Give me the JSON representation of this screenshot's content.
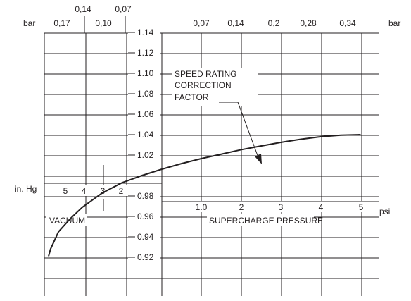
{
  "chart_data": {
    "type": "line",
    "title": "",
    "units": {
      "top_left": "bar",
      "top_right": "bar",
      "left": "in. Hg",
      "right": "psi"
    },
    "bar_vacuum_ticks": [
      "0,17",
      "0,14",
      "0,10",
      "0,07"
    ],
    "bar_pressure_ticks": [
      "0,07",
      "0,14",
      "0,2",
      "0,28",
      "0,34"
    ],
    "vacuum_ticks": [
      "5",
      "4",
      "3",
      "2"
    ],
    "pressure_ticks": [
      "1.0",
      "2",
      "3",
      "4",
      "5"
    ],
    "factor_ticks": [
      "1.14",
      "1.12",
      "1.10",
      "1.08",
      "1.06",
      "1.04",
      "1.02",
      "0.98",
      "0.96",
      "0.94",
      "0.92"
    ],
    "labels": {
      "vacuum": "VACUUM",
      "supercharge": "SUPERCHARGE PRESSURE",
      "annotation_line1": "SPEED RATING",
      "annotation_line2": "CORRECTION",
      "annotation_line3": "FACTOR"
    },
    "series": [
      {
        "x_unit": "psi",
        "x": [
          -2.85,
          -2.8,
          -2.6,
          -2.3,
          -2.0,
          -1.5,
          -1.0,
          -0.5,
          0,
          0.5,
          1.0,
          1.5,
          2.0,
          2.5,
          3.0,
          3.5,
          4.0,
          4.5,
          5.0
        ],
        "y": [
          0.921,
          0.928,
          0.945,
          0.958,
          0.969,
          0.983,
          0.993,
          1.0,
          1.0062,
          1.0117,
          1.0166,
          1.021,
          1.0253,
          1.029,
          1.0325,
          1.0355,
          1.038,
          1.0395,
          1.04
        ]
      }
    ]
  }
}
